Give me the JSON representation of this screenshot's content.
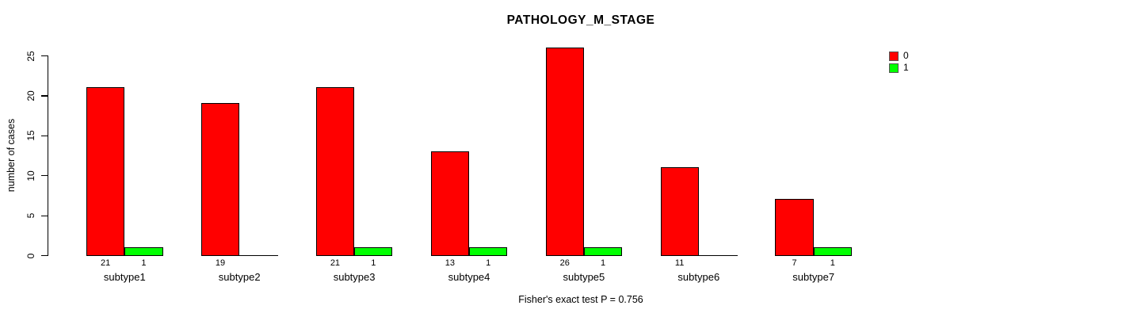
{
  "title": "PATHOLOGY_M_STAGE",
  "footer": "Fisher's exact test P = 0.756",
  "legend": {
    "items": [
      {
        "label": "0",
        "color": "#FF0000"
      },
      {
        "label": "1",
        "color": "#00FF00"
      }
    ]
  },
  "chart_data": {
    "type": "bar",
    "title": "PATHOLOGY_M_STAGE",
    "xlabel": "",
    "ylabel": "number of cases",
    "categories": [
      "subtype1",
      "subtype2",
      "subtype3",
      "subtype4",
      "subtype5",
      "subtype6",
      "subtype7"
    ],
    "series": [
      {
        "name": "0",
        "color": "#FF0000",
        "values": [
          21,
          19,
          21,
          13,
          26,
          11,
          7
        ]
      },
      {
        "name": "1",
        "color": "#00FF00",
        "values": [
          1,
          0,
          1,
          1,
          1,
          0,
          1
        ]
      }
    ],
    "yticks": [
      0,
      5,
      10,
      15,
      20,
      25
    ],
    "ylim": [
      0,
      26
    ],
    "grid": false,
    "bar_value_labels": true,
    "legend_position": "top-right",
    "annotation": "Fisher's exact test P = 0.756"
  }
}
